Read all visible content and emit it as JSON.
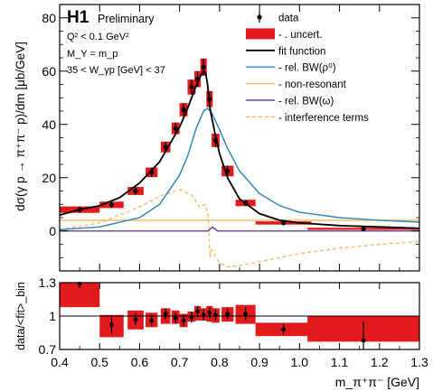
{
  "figure": {
    "experiment": "H1",
    "status": "Preliminary",
    "conditions": [
      "Q² < 0.1 GeV²",
      "M_Y = m_p",
      "35 < W_γp [GeV] < 37"
    ]
  },
  "legend": [
    {
      "key": "data",
      "label": "data",
      "style": "marker",
      "color": "#000000"
    },
    {
      "key": "uncert",
      "label": "- . uncert.",
      "style": "box",
      "color": "#e31a1c"
    },
    {
      "key": "fit",
      "label": "fit function",
      "style": "line",
      "color": "#000000"
    },
    {
      "key": "bw_rho",
      "label": "- rel. BW(ρ⁰)",
      "style": "line",
      "color": "#2b83ba"
    },
    {
      "key": "nonres",
      "label": "- non-resonant",
      "style": "line",
      "color": "#f4b860"
    },
    {
      "key": "bw_omega",
      "label": "- rel. BW(ω)",
      "style": "line",
      "color": "#6a3d9a"
    },
    {
      "key": "interf",
      "label": "- interference terms",
      "style": "dashed",
      "color": "#f4b860"
    }
  ],
  "chart_data": [
    {
      "type": "scatter",
      "panel": "main",
      "ylabel": "dσ(γ p → π⁺π⁻ p)/dm [μb/GeV]",
      "xlim": [
        0.4,
        1.3
      ],
      "ylim": [
        -15,
        85
      ],
      "yticks": [
        0,
        20,
        40,
        60,
        80
      ],
      "series": [
        {
          "name": "data",
          "x": [
            0.45,
            0.53,
            0.59,
            0.63,
            0.665,
            0.69,
            0.71,
            0.73,
            0.745,
            0.76,
            0.775,
            0.79,
            0.82,
            0.865,
            0.96,
            1.16
          ],
          "y": [
            8.0,
            9.8,
            15.0,
            22.0,
            31.5,
            38.5,
            45.5,
            54.0,
            57.0,
            61.5,
            49.5,
            34.0,
            22.5,
            10.5,
            3.0,
            0.8
          ],
          "yerr": [
            1.2,
            1.2,
            1.5,
            1.8,
            2.0,
            2.2,
            2.5,
            2.8,
            3.0,
            3.2,
            3.0,
            2.5,
            2.0,
            1.2,
            0.6,
            0.4
          ],
          "band_halfwidth": [
            0.05,
            0.03,
            0.02,
            0.015,
            0.012,
            0.01,
            0.01,
            0.01,
            0.008,
            0.008,
            0.008,
            0.01,
            0.015,
            0.025,
            0.07,
            0.14
          ]
        },
        {
          "name": "fit function",
          "x": [
            0.4,
            0.45,
            0.5,
            0.55,
            0.6,
            0.65,
            0.7,
            0.72,
            0.74,
            0.75,
            0.76,
            0.765,
            0.77,
            0.775,
            0.78,
            0.79,
            0.8,
            0.82,
            0.85,
            0.9,
            0.95,
            1.0,
            1.1,
            1.2,
            1.3
          ],
          "y": [
            6.0,
            8.0,
            9.5,
            12.5,
            18.0,
            26.0,
            39.0,
            46.0,
            54.0,
            57.5,
            60.0,
            59.5,
            55.0,
            47.0,
            43.0,
            35.5,
            29.0,
            20.0,
            12.0,
            6.5,
            4.0,
            3.0,
            2.0,
            1.5,
            1.0
          ]
        },
        {
          "name": "rel. BW(ρ⁰)",
          "x": [
            0.4,
            0.5,
            0.6,
            0.65,
            0.7,
            0.72,
            0.74,
            0.76,
            0.77,
            0.78,
            0.8,
            0.82,
            0.85,
            0.9,
            0.95,
            1.0,
            1.1,
            1.2,
            1.3
          ],
          "y": [
            0.5,
            1.5,
            5.0,
            10.0,
            21.0,
            28.0,
            38.0,
            45.0,
            46.0,
            44.5,
            38.0,
            31.0,
            22.5,
            14.0,
            9.5,
            7.0,
            5.0,
            4.0,
            3.3
          ]
        },
        {
          "name": "non-resonant",
          "x": [
            0.4,
            0.6,
            0.8,
            1.0,
            1.3
          ],
          "y": [
            4.0,
            4.0,
            4.0,
            4.0,
            4.0
          ]
        },
        {
          "name": "rel. BW(ω)",
          "x": [
            0.4,
            0.76,
            0.772,
            0.782,
            0.795,
            1.3
          ],
          "y": [
            0.0,
            0.0,
            0.0,
            1.5,
            0.0,
            0.0
          ]
        },
        {
          "name": "interference terms",
          "x": [
            0.4,
            0.5,
            0.6,
            0.65,
            0.7,
            0.73,
            0.75,
            0.765,
            0.772,
            0.776,
            0.78,
            0.79,
            0.8,
            0.82,
            0.85,
            0.9,
            0.95,
            1.0,
            1.1,
            1.2,
            1.3
          ],
          "y": [
            0.5,
            3.0,
            9.0,
            13.0,
            15.5,
            13.5,
            9.0,
            10.0,
            5.0,
            -10.0,
            -7.0,
            -9.5,
            -12.0,
            -13.5,
            -13.0,
            -11.5,
            -10.0,
            -8.5,
            -6.5,
            -5.0,
            -4.0
          ]
        }
      ]
    },
    {
      "type": "scatter",
      "panel": "ratio",
      "xlabel": "m_π⁺π⁻ [GeV]",
      "ylabel": "data/<fit>_bin",
      "xlim": [
        0.4,
        1.3
      ],
      "ylim": [
        0.7,
        1.3
      ],
      "xticks": [
        0.4,
        0.5,
        0.6,
        0.7,
        0.8,
        0.9,
        1.0,
        1.1,
        1.2,
        1.3
      ],
      "yticks": [
        0.7,
        1.0,
        1.3
      ],
      "reference_line": 1.0,
      "series": [
        {
          "name": "data/fit",
          "x": [
            0.45,
            0.53,
            0.59,
            0.63,
            0.665,
            0.69,
            0.71,
            0.73,
            0.745,
            0.76,
            0.775,
            0.79,
            0.82,
            0.865,
            0.96,
            1.16
          ],
          "y": [
            1.29,
            0.92,
            0.97,
            0.96,
            1.02,
            0.98,
            0.96,
            0.99,
            1.04,
            1.01,
            1.03,
            1.01,
            1.02,
            1.02,
            0.88,
            0.78
          ],
          "yerr": [
            0.04,
            0.08,
            0.05,
            0.05,
            0.05,
            0.05,
            0.05,
            0.05,
            0.05,
            0.05,
            0.05,
            0.05,
            0.05,
            0.06,
            0.05,
            0.17
          ],
          "band_lo": [
            1.08,
            0.81,
            0.88,
            0.9,
            0.93,
            0.93,
            0.9,
            0.95,
            0.96,
            0.96,
            0.95,
            0.94,
            0.95,
            0.93,
            0.82,
            0.77
          ],
          "band_hi": [
            1.3,
            1.01,
            1.05,
            1.03,
            1.07,
            1.05,
            1.02,
            1.04,
            1.09,
            1.07,
            1.09,
            1.07,
            1.08,
            1.1,
            0.94,
            1.0
          ],
          "band_halfwidth": [
            0.05,
            0.03,
            0.02,
            0.015,
            0.012,
            0.01,
            0.01,
            0.01,
            0.008,
            0.008,
            0.008,
            0.01,
            0.015,
            0.025,
            0.07,
            0.14
          ]
        }
      ]
    }
  ]
}
